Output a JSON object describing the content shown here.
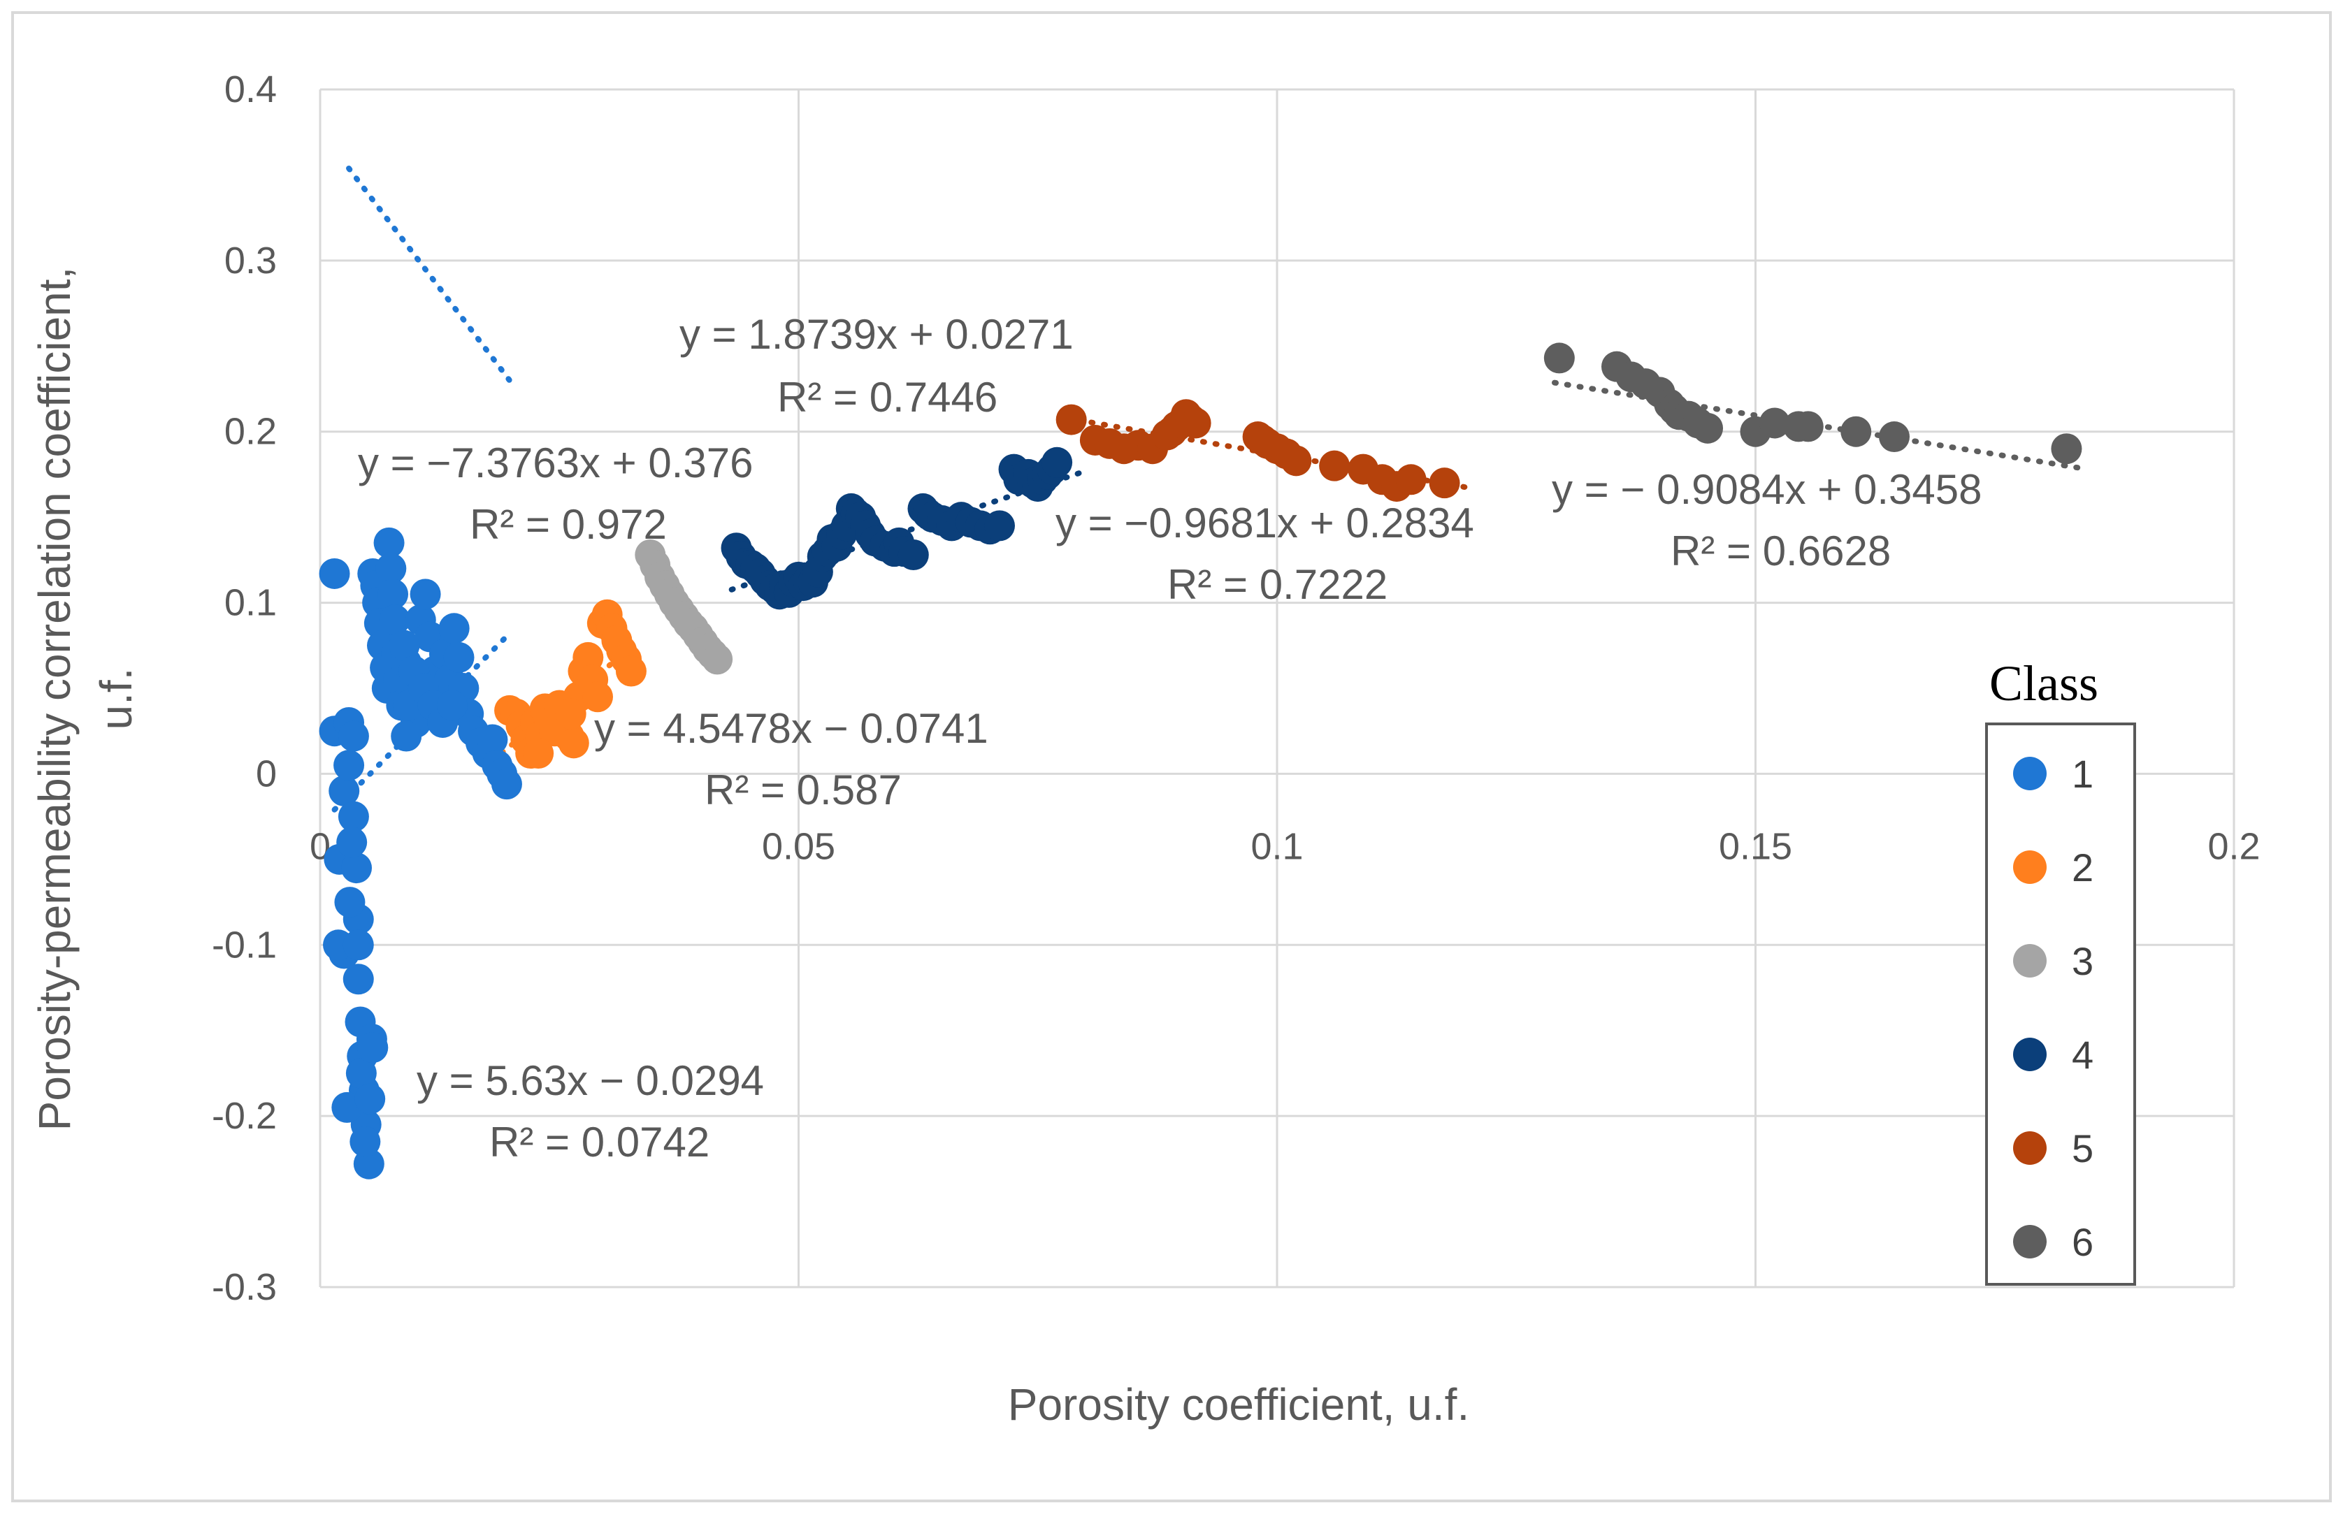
{
  "chart_data": {
    "type": "scatter",
    "xlabel": "Porosity coefficient, u.f.",
    "ylabel": "Porosity-permeability correlation coefficient, u.f.",
    "xlim": [
      0,
      0.2
    ],
    "ylim": [
      -0.3,
      0.4
    ],
    "x_ticks": [
      "0",
      "0.05",
      "0.1",
      "0.15",
      "0.2"
    ],
    "y_ticks": [
      "-0.3",
      "-0.2",
      "-0.1",
      "0",
      "0.1",
      "0.2",
      "0.3",
      "0.4"
    ],
    "grid": true,
    "legend": {
      "title": "Class",
      "position": "right"
    },
    "colors": {
      "class1": "#1f77d4",
      "class2": "#ff7f1e",
      "class3": "#a5a5a5",
      "class4": "#0b3f7a",
      "class5": "#b5420c",
      "class6": "#5e5e5e",
      "grid": "#d9d9d9",
      "frame": "#d9d9d9"
    },
    "series": [
      {
        "name": "1",
        "color": "#1f77d4",
        "trendline": {
          "slope": -7.3763,
          "intercept": 0.376,
          "x_range": [
            0.003,
            0.02
          ]
        },
        "points": [
          [
            0.0015,
            0.117
          ],
          [
            0.0015,
            0.025
          ],
          [
            0.002,
            -0.05
          ],
          [
            0.0025,
            -0.01
          ],
          [
            0.003,
            0.03
          ],
          [
            0.003,
            0.005
          ],
          [
            0.0035,
            0.022
          ],
          [
            0.0035,
            -0.025
          ],
          [
            0.0038,
            -0.055
          ],
          [
            0.004,
            -0.085
          ],
          [
            0.004,
            -0.12
          ],
          [
            0.0042,
            -0.145
          ],
          [
            0.0044,
            -0.165
          ],
          [
            0.0046,
            -0.185
          ],
          [
            0.0048,
            -0.205
          ],
          [
            0.0051,
            -0.228
          ],
          [
            0.0054,
            -0.155
          ],
          [
            0.0031,
            -0.075
          ],
          [
            0.0025,
            -0.105
          ],
          [
            0.0019,
            -0.1
          ],
          [
            0.0028,
            -0.195
          ],
          [
            0.0043,
            -0.175
          ],
          [
            0.0047,
            -0.215
          ],
          [
            0.0052,
            -0.19
          ],
          [
            0.0055,
            -0.16
          ],
          [
            0.004,
            -0.1
          ],
          [
            0.0033,
            -0.04
          ],
          [
            0.0055,
            0.117
          ],
          [
            0.0058,
            0.11
          ],
          [
            0.006,
            0.1
          ],
          [
            0.0062,
            0.088
          ],
          [
            0.0065,
            0.075
          ],
          [
            0.0068,
            0.062
          ],
          [
            0.007,
            0.05
          ],
          [
            0.0072,
            0.135
          ],
          [
            0.0074,
            0.12
          ],
          [
            0.0076,
            0.105
          ],
          [
            0.0078,
            0.09
          ],
          [
            0.008,
            0.07
          ],
          [
            0.0082,
            0.055
          ],
          [
            0.0085,
            0.04
          ],
          [
            0.009,
            0.065
          ],
          [
            0.0095,
            0.045
          ],
          [
            0.01,
            0.03
          ],
          [
            0.0105,
            0.09
          ],
          [
            0.011,
            0.105
          ],
          [
            0.0115,
            0.08
          ],
          [
            0.012,
            0.06
          ],
          [
            0.0125,
            0.045
          ],
          [
            0.013,
            0.07
          ],
          [
            0.0135,
            0.055
          ],
          [
            0.014,
            0.085
          ],
          [
            0.0145,
            0.068
          ],
          [
            0.015,
            0.05
          ],
          [
            0.0155,
            0.035
          ],
          [
            0.016,
            0.025
          ],
          [
            0.0168,
            0.018
          ],
          [
            0.0175,
            0.012
          ],
          [
            0.018,
            0.02
          ],
          [
            0.0185,
            0.005
          ],
          [
            0.019,
            0.0
          ],
          [
            0.0195,
            -0.006
          ],
          [
            0.009,
            0.022
          ],
          [
            0.0088,
            0.075
          ],
          [
            0.0092,
            0.04
          ],
          [
            0.0098,
            0.06
          ],
          [
            0.0108,
            0.05
          ],
          [
            0.0118,
            0.04
          ],
          [
            0.0128,
            0.03
          ],
          [
            0.0138,
            0.04
          ]
        ]
      },
      {
        "name": "2",
        "color": "#ff7f1e",
        "trendline": {
          "slope": 4.5478,
          "intercept": -0.0741,
          "x_range": [
            0.019,
            0.033
          ]
        },
        "points": [
          [
            0.0198,
            0.037
          ],
          [
            0.0205,
            0.035
          ],
          [
            0.021,
            0.028
          ],
          [
            0.0215,
            0.02
          ],
          [
            0.022,
            0.012
          ],
          [
            0.0225,
            0.03
          ],
          [
            0.023,
            0.022
          ],
          [
            0.0235,
            0.038
          ],
          [
            0.024,
            0.03
          ],
          [
            0.0245,
            0.025
          ],
          [
            0.025,
            0.04
          ],
          [
            0.0255,
            0.03
          ],
          [
            0.026,
            0.022
          ],
          [
            0.0265,
            0.018
          ],
          [
            0.027,
            0.045
          ],
          [
            0.0275,
            0.06
          ],
          [
            0.028,
            0.068
          ],
          [
            0.0285,
            0.055
          ],
          [
            0.029,
            0.045
          ],
          [
            0.0295,
            0.088
          ],
          [
            0.03,
            0.093
          ],
          [
            0.0305,
            0.085
          ],
          [
            0.031,
            0.078
          ],
          [
            0.0315,
            0.072
          ],
          [
            0.032,
            0.067
          ],
          [
            0.0325,
            0.06
          ],
          [
            0.0228,
            0.012
          ],
          [
            0.0262,
            0.035
          ]
        ]
      },
      {
        "name": "3",
        "color": "#a5a5a5",
        "trendline": null,
        "points": [
          [
            0.0345,
            0.128
          ],
          [
            0.035,
            0.122
          ],
          [
            0.0355,
            0.115
          ],
          [
            0.036,
            0.11
          ],
          [
            0.0365,
            0.105
          ],
          [
            0.037,
            0.1
          ],
          [
            0.0375,
            0.096
          ],
          [
            0.038,
            0.092
          ],
          [
            0.0385,
            0.088
          ],
          [
            0.039,
            0.085
          ],
          [
            0.0395,
            0.081
          ],
          [
            0.04,
            0.077
          ],
          [
            0.0405,
            0.073
          ],
          [
            0.041,
            0.07
          ],
          [
            0.0415,
            0.067
          ]
        ]
      },
      {
        "name": "4",
        "color": "#0b3f7a",
        "trendline": {
          "slope": 1.8739,
          "intercept": 0.0271,
          "x_range": [
            0.043,
            0.08
          ]
        },
        "points": [
          [
            0.0435,
            0.132
          ],
          [
            0.044,
            0.127
          ],
          [
            0.0445,
            0.123
          ],
          [
            0.045,
            0.122
          ],
          [
            0.0455,
            0.12
          ],
          [
            0.046,
            0.117
          ],
          [
            0.0465,
            0.113
          ],
          [
            0.047,
            0.11
          ],
          [
            0.0475,
            0.108
          ],
          [
            0.048,
            0.105
          ],
          [
            0.0485,
            0.11
          ],
          [
            0.049,
            0.106
          ],
          [
            0.0495,
            0.112
          ],
          [
            0.05,
            0.115
          ],
          [
            0.0505,
            0.11
          ],
          [
            0.051,
            0.113
          ],
          [
            0.0515,
            0.112
          ],
          [
            0.052,
            0.118
          ],
          [
            0.0525,
            0.127
          ],
          [
            0.053,
            0.13
          ],
          [
            0.0535,
            0.137
          ],
          [
            0.054,
            0.133
          ],
          [
            0.0545,
            0.14
          ],
          [
            0.055,
            0.145
          ],
          [
            0.0555,
            0.155
          ],
          [
            0.056,
            0.152
          ],
          [
            0.0565,
            0.15
          ],
          [
            0.057,
            0.145
          ],
          [
            0.0575,
            0.14
          ],
          [
            0.058,
            0.136
          ],
          [
            0.059,
            0.133
          ],
          [
            0.06,
            0.13
          ],
          [
            0.0605,
            0.135
          ],
          [
            0.061,
            0.13
          ],
          [
            0.062,
            0.128
          ],
          [
            0.063,
            0.155
          ],
          [
            0.0635,
            0.152
          ],
          [
            0.064,
            0.15
          ],
          [
            0.065,
            0.148
          ],
          [
            0.066,
            0.145
          ],
          [
            0.067,
            0.15
          ],
          [
            0.068,
            0.147
          ],
          [
            0.069,
            0.145
          ],
          [
            0.07,
            0.143
          ],
          [
            0.071,
            0.145
          ],
          [
            0.0725,
            0.178
          ],
          [
            0.073,
            0.172
          ],
          [
            0.074,
            0.175
          ],
          [
            0.0745,
            0.17
          ],
          [
            0.075,
            0.168
          ],
          [
            0.0755,
            0.172
          ],
          [
            0.076,
            0.175
          ],
          [
            0.0765,
            0.178
          ],
          [
            0.077,
            0.182
          ]
        ]
      },
      {
        "name": "5",
        "color": "#b5420c",
        "trendline": {
          "slope": -0.9681,
          "intercept": 0.2834,
          "x_range": [
            0.078,
            0.12
          ]
        },
        "points": [
          [
            0.0785,
            0.207
          ],
          [
            0.081,
            0.195
          ],
          [
            0.0825,
            0.193
          ],
          [
            0.084,
            0.19
          ],
          [
            0.0855,
            0.192
          ],
          [
            0.087,
            0.19
          ],
          [
            0.0885,
            0.198
          ],
          [
            0.089,
            0.2
          ],
          [
            0.0895,
            0.203
          ],
          [
            0.09,
            0.205
          ],
          [
            0.0905,
            0.21
          ],
          [
            0.091,
            0.207
          ],
          [
            0.0915,
            0.205
          ],
          [
            0.098,
            0.197
          ],
          [
            0.0985,
            0.195
          ],
          [
            0.099,
            0.193
          ],
          [
            0.1,
            0.19
          ],
          [
            0.101,
            0.187
          ],
          [
            0.102,
            0.183
          ],
          [
            0.106,
            0.18
          ],
          [
            0.109,
            0.178
          ],
          [
            0.111,
            0.172
          ],
          [
            0.1125,
            0.168
          ],
          [
            0.114,
            0.172
          ],
          [
            0.1175,
            0.17
          ]
        ]
      },
      {
        "name": "6",
        "color": "#5e5e5e",
        "trendline": {
          "slope": -0.9084,
          "intercept": 0.3458,
          "x_range": [
            0.129,
            0.184
          ]
        },
        "points": [
          [
            0.1295,
            0.243
          ],
          [
            0.1355,
            0.238
          ],
          [
            0.137,
            0.232
          ],
          [
            0.1385,
            0.228
          ],
          [
            0.14,
            0.223
          ],
          [
            0.141,
            0.216
          ],
          [
            0.1415,
            0.213
          ],
          [
            0.142,
            0.21
          ],
          [
            0.143,
            0.209
          ],
          [
            0.144,
            0.205
          ],
          [
            0.145,
            0.202
          ],
          [
            0.15,
            0.2
          ],
          [
            0.152,
            0.205
          ],
          [
            0.1545,
            0.203
          ],
          [
            0.1555,
            0.203
          ],
          [
            0.1605,
            0.2
          ],
          [
            0.1645,
            0.197
          ],
          [
            0.1825,
            0.19
          ]
        ]
      }
    ],
    "annotations": [
      {
        "text": "y = −7.3763x + 0.376",
        "series": "1"
      },
      {
        "text": "R² = 0.972",
        "series": "1"
      },
      {
        "text": "y = 5.63x − 0.0294",
        "series": "1"
      },
      {
        "text": "R² = 0.0742",
        "series": "1"
      },
      {
        "text": "y = 4.5478x − 0.0741",
        "series": "2"
      },
      {
        "text": "R² = 0.587",
        "series": "2"
      },
      {
        "text": "y = 1.8739x + 0.0271",
        "series": "4"
      },
      {
        "text": "R² = 0.7446",
        "series": "4"
      },
      {
        "text": "y = −0.9681x + 0.2834",
        "series": "5"
      },
      {
        "text": "R² = 0.7222",
        "series": "5"
      },
      {
        "text": "y = − 0.9084x + 0.3458",
        "series": "6"
      },
      {
        "text": "R² = 0.6628",
        "series": "6"
      }
    ]
  }
}
